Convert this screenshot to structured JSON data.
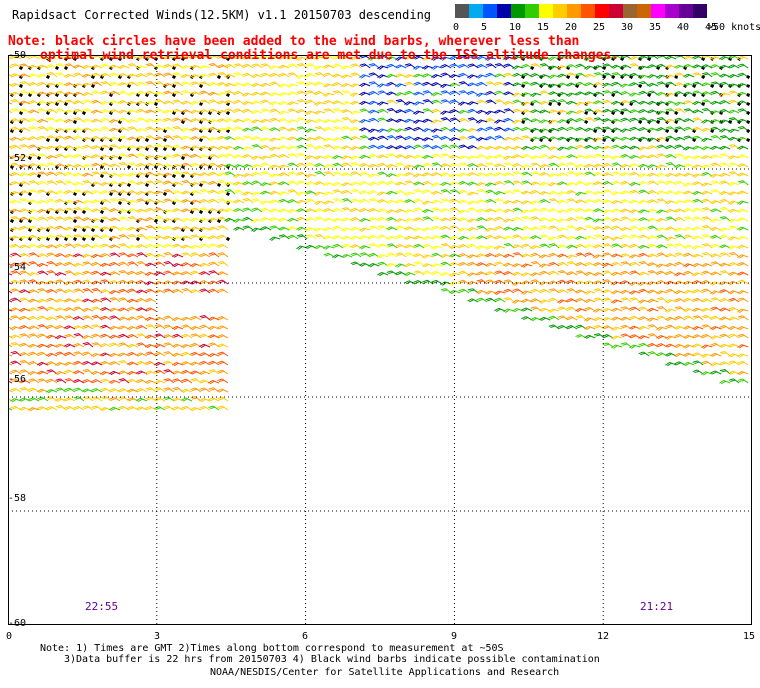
{
  "header": {
    "title": "Rapidsact Corrected Winds(12.5KM) v1.1 20150703 descending"
  },
  "legend": {
    "unit": ">50 knots",
    "labels": [
      "0",
      "5",
      "10",
      "15",
      "20",
      "25",
      "30",
      "35",
      "40",
      "45"
    ],
    "colors": [
      "#555555",
      "#00aaee",
      "#0055ff",
      "#0000aa",
      "#009900",
      "#33cc00",
      "#ffff00",
      "#ffcc00",
      "#ff9900",
      "#ff5500",
      "#ff0000",
      "#cc0033",
      "#996633",
      "#cc6600",
      "#ff00ff",
      "#aa00cc",
      "#660099",
      "#330066"
    ]
  },
  "note": {
    "line1": "Note: black circles have been added to the wind barbs, wherever less than",
    "line2": "optimal wind retrieval conditions are met due to the ISS altitude changes."
  },
  "axes": {
    "x_ticks": [
      "0",
      "3",
      "6",
      "9",
      "12",
      "15"
    ],
    "y_ticks": [
      "-50",
      "-52",
      "-54",
      "-56",
      "-58",
      "-60"
    ],
    "x_range": [
      0,
      15
    ],
    "y_range": [
      -60,
      -50
    ]
  },
  "pass_times": [
    "22:55",
    "21:21"
  ],
  "footer": {
    "line1": "Note: 1) Times are GMT 2)Times along bottom correspond to measurement at ~50S",
    "line2": "3)Data buffer is 22 hrs from 20150703 4) Black wind barbs indicate possible contamination",
    "credit": "NOAA/NESDIS/Center for Satellite Applications and Research"
  },
  "swaths": [
    {
      "name": "swath-west",
      "from": [
        0,
        -50
      ],
      "to": [
        4.5,
        -56.3
      ],
      "dominant_speed_knots": [
        20,
        35
      ]
    },
    {
      "name": "swath-east",
      "from": [
        4.5,
        -50
      ],
      "to": [
        15,
        -56
      ],
      "dominant_speed_knots": [
        10,
        30
      ]
    }
  ]
}
